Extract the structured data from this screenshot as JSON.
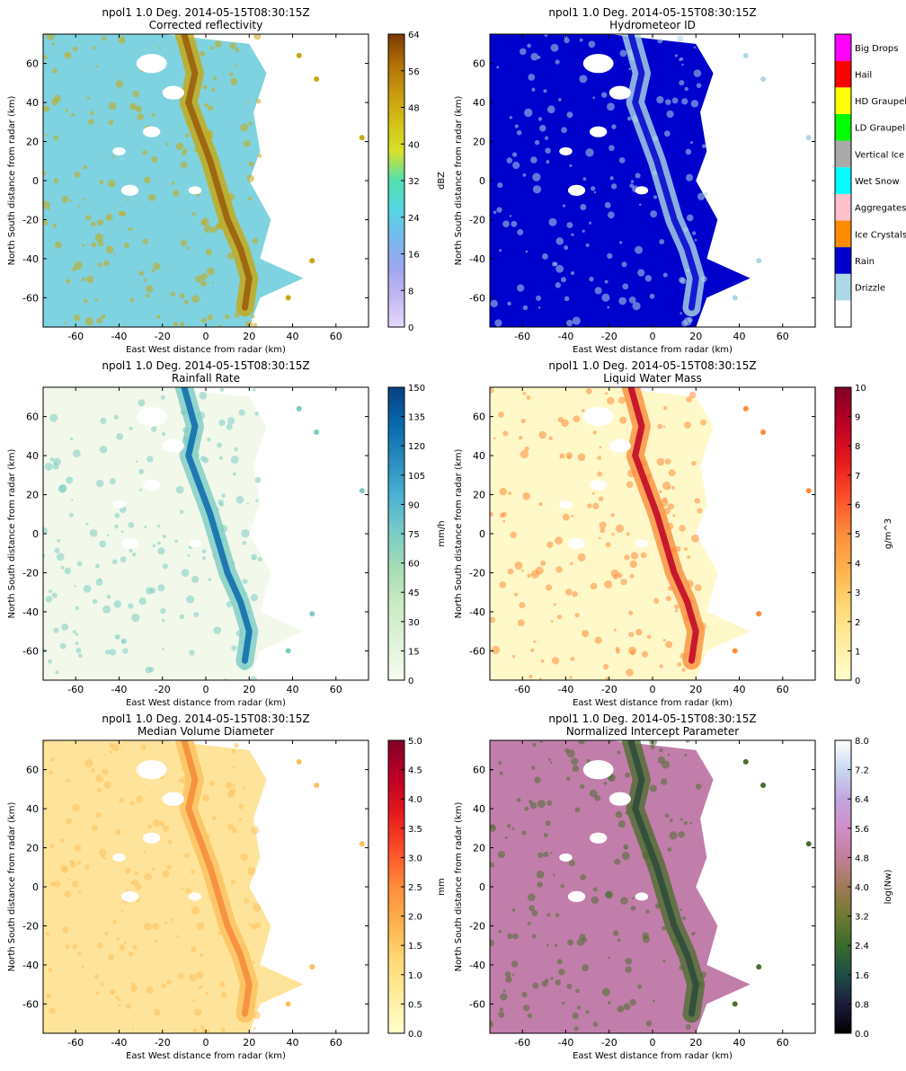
{
  "figure": {
    "panels": [
      {
        "title_line1": "npol1 1.0 Deg. 2014-05-15T08:30:15Z",
        "title_line2": "Corrected reflectivity",
        "xlabel": "East West distance from radar (km)",
        "ylabel": "North South distance from radar (km)",
        "colorbar_label": "dBZ",
        "colorbar_ticks": [
          "0",
          "8",
          "16",
          "24",
          "32",
          "40",
          "48",
          "56",
          "64"
        ],
        "colormap": [
          "#e6d8fa",
          "#c4b8f2",
          "#9fa6ee",
          "#79b8ec",
          "#56d6e2",
          "#52e0b0",
          "#d8e02c",
          "#d2c018",
          "#c89a10",
          "#b06e08",
          "#7a3a00"
        ],
        "background_fill": "#7fd3e0",
        "feature_fill": "#c8a810",
        "core_fill": "#9a5a08"
      },
      {
        "title_line1": "npol1 1.0 Deg. 2014-05-15T08:30:15Z",
        "title_line2": "Hydrometeor ID",
        "xlabel": "East West distance from radar (km)",
        "ylabel": "North South distance from radar (km)",
        "categories": [
          {
            "label": "",
            "color": "#ffffff"
          },
          {
            "label": "Drizzle",
            "color": "#add8e6"
          },
          {
            "label": "Rain",
            "color": "#0000cd"
          },
          {
            "label": "Ice Crystals",
            "color": "#ff8c00"
          },
          {
            "label": "Aggregates",
            "color": "#ffc0cb"
          },
          {
            "label": "Wet Snow",
            "color": "#00ffff"
          },
          {
            "label": "Vertical Ice",
            "color": "#a9a9a9"
          },
          {
            "label": "LD Graupel",
            "color": "#00ff00"
          },
          {
            "label": "HD Graupel",
            "color": "#ffff00"
          },
          {
            "label": "Hail",
            "color": "#ff0000"
          },
          {
            "label": "Big Drops",
            "color": "#ff00ff"
          }
        ],
        "background_fill": "#0000cd",
        "feature_fill": "#add8e6",
        "core_fill": "#0000cd"
      },
      {
        "title_line1": "npol1 1.0 Deg. 2014-05-15T08:30:15Z",
        "title_line2": "Rainfall Rate",
        "xlabel": "East West distance from radar (km)",
        "ylabel": "North South distance from radar (km)",
        "colorbar_label": "mm/h",
        "colorbar_ticks": [
          "0",
          "15",
          "30",
          "45",
          "60",
          "75",
          "90",
          "105",
          "120",
          "135",
          "150"
        ],
        "colormap": [
          "#f7fcf0",
          "#e0f3db",
          "#ccebc5",
          "#a8ddb5",
          "#7bccc4",
          "#4eb3d3",
          "#2b8cbe",
          "#0868ac",
          "#084081"
        ],
        "background_fill": "#f2f9ea",
        "feature_fill": "#7bccc4",
        "core_fill": "#0868ac"
      },
      {
        "title_line1": "npol1 1.0 Deg. 2014-05-15T08:30:15Z",
        "title_line2": "Liquid Water Mass",
        "xlabel": "East West distance from radar (km)",
        "ylabel": "North South distance from radar (km)",
        "colorbar_label": "g/m^3",
        "colorbar_ticks": [
          "0",
          "1",
          "2",
          "3",
          "4",
          "5",
          "6",
          "7",
          "8",
          "9",
          "10"
        ],
        "colormap": [
          "#ffffcc",
          "#ffeda0",
          "#fed976",
          "#feb24c",
          "#fd8d3c",
          "#fc4e2a",
          "#e31a1c",
          "#bd0026",
          "#800026"
        ],
        "background_fill": "#fff8c8",
        "feature_fill": "#fd8d3c",
        "core_fill": "#bd0026"
      },
      {
        "title_line1": "npol1 1.0 Deg. 2014-05-15T08:30:15Z",
        "title_line2": "Median Volume Diameter",
        "xlabel": "East West distance from radar (km)",
        "ylabel": "North South distance from radar (km)",
        "colorbar_label": "mm",
        "colorbar_ticks": [
          "0.0",
          "0.5",
          "1.0",
          "1.5",
          "2.0",
          "2.5",
          "3.0",
          "3.5",
          "4.0",
          "4.5",
          "5.0"
        ],
        "colormap": [
          "#ffffcc",
          "#ffeda0",
          "#fed976",
          "#feb24c",
          "#fd8d3c",
          "#fc4e2a",
          "#e31a1c",
          "#bd0026",
          "#800026"
        ],
        "background_fill": "#fee49a",
        "feature_fill": "#fdbf5c",
        "core_fill": "#f48a3a"
      },
      {
        "title_line1": "npol1 1.0 Deg. 2014-05-15T08:30:15Z",
        "title_line2": "Normalized Intercept Parameter",
        "xlabel": "East West distance from radar (km)",
        "ylabel": "North South distance from radar (km)",
        "colorbar_label": "log(Nw)",
        "colorbar_ticks": [
          "0.0",
          "0.8",
          "1.6",
          "2.4",
          "3.2",
          "4.0",
          "4.8",
          "5.6",
          "6.4",
          "7.2",
          "8.0"
        ],
        "colormap": [
          "#000000",
          "#1c1c3c",
          "#1e4e46",
          "#3a6a2e",
          "#6e7a30",
          "#a07a56",
          "#c27e9a",
          "#d08ec8",
          "#c0a6e0",
          "#c8d8f0",
          "#ffffff"
        ],
        "background_fill": "#c27eaa",
        "feature_fill": "#4e6e30",
        "core_fill": "#2a4a3a"
      }
    ]
  },
  "chart_data": [
    {
      "type": "heatmap",
      "title": "npol1 1.0 Deg. 2014-05-15T08:30:15Z\nCorrected reflectivity",
      "xlabel": "East West distance from radar (km)",
      "ylabel": "North South distance from radar (km)",
      "xlim": [
        -75,
        75
      ],
      "ylim": [
        -75,
        75
      ],
      "xticks": [
        -60,
        -40,
        -20,
        0,
        20,
        40,
        60
      ],
      "yticks": [
        -60,
        -40,
        -20,
        0,
        20,
        40,
        60
      ],
      "colorbar": {
        "label": "dBZ",
        "range": [
          0,
          64
        ]
      }
    },
    {
      "type": "heatmap",
      "title": "npol1 1.0 Deg. 2014-05-15T08:30:15Z\nHydrometeor ID",
      "xlabel": "East West distance from radar (km)",
      "ylabel": "North South distance from radar (km)",
      "xlim": [
        -75,
        75
      ],
      "ylim": [
        -75,
        75
      ],
      "xticks": [
        -60,
        -40,
        -20,
        0,
        20,
        40,
        60
      ],
      "yticks": [
        -60,
        -40,
        -20,
        0,
        20,
        40,
        60
      ],
      "colorbar": {
        "categories": [
          "Drizzle",
          "Rain",
          "Ice Crystals",
          "Aggregates",
          "Wet Snow",
          "Vertical Ice",
          "LD Graupel",
          "HD Graupel",
          "Hail",
          "Big Drops"
        ]
      }
    },
    {
      "type": "heatmap",
      "title": "npol1 1.0 Deg. 2014-05-15T08:30:15Z\nRainfall Rate",
      "xlabel": "East West distance from radar (km)",
      "ylabel": "North South distance from radar (km)",
      "xlim": [
        -75,
        75
      ],
      "ylim": [
        -75,
        75
      ],
      "xticks": [
        -60,
        -40,
        -20,
        0,
        20,
        40,
        60
      ],
      "yticks": [
        -60,
        -40,
        -20,
        0,
        20,
        40,
        60
      ],
      "colorbar": {
        "label": "mm/h",
        "range": [
          0,
          150
        ]
      }
    },
    {
      "type": "heatmap",
      "title": "npol1 1.0 Deg. 2014-05-15T08:30:15Z\nLiquid Water Mass",
      "xlabel": "East West distance from radar (km)",
      "ylabel": "North South distance from radar (km)",
      "xlim": [
        -75,
        75
      ],
      "ylim": [
        -75,
        75
      ],
      "xticks": [
        -60,
        -40,
        -20,
        0,
        20,
        40,
        60
      ],
      "yticks": [
        -60,
        -40,
        -20,
        0,
        20,
        40,
        60
      ],
      "colorbar": {
        "label": "g/m^3",
        "range": [
          0,
          10
        ]
      }
    },
    {
      "type": "heatmap",
      "title": "npol1 1.0 Deg. 2014-05-15T08:30:15Z\nMedian Volume Diameter",
      "xlabel": "East West distance from radar (km)",
      "ylabel": "North South distance from radar (km)",
      "xlim": [
        -75,
        75
      ],
      "ylim": [
        -75,
        75
      ],
      "xticks": [
        -60,
        -40,
        -20,
        0,
        20,
        40,
        60
      ],
      "yticks": [
        -60,
        -40,
        -20,
        0,
        20,
        40,
        60
      ],
      "colorbar": {
        "label": "mm",
        "range": [
          0,
          5
        ]
      }
    },
    {
      "type": "heatmap",
      "title": "npol1 1.0 Deg. 2014-05-15T08:30:15Z\nNormalized Intercept Parameter",
      "xlabel": "East West distance from radar (km)",
      "ylabel": "North South distance from radar (km)",
      "xlim": [
        -75,
        75
      ],
      "ylim": [
        -75,
        75
      ],
      "xticks": [
        -60,
        -40,
        -20,
        0,
        20,
        40,
        60
      ],
      "yticks": [
        -60,
        -40,
        -20,
        0,
        20,
        40,
        60
      ],
      "colorbar": {
        "label": "log(Nw)",
        "range": [
          0,
          8
        ]
      }
    }
  ]
}
